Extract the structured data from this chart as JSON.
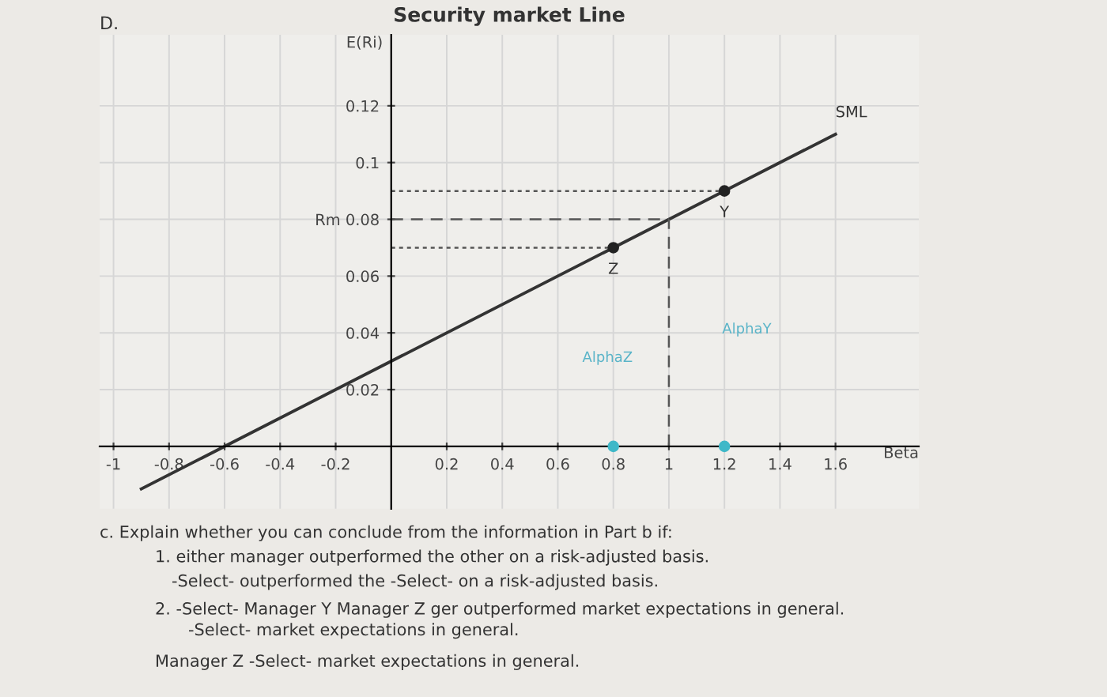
{
  "chart_data": {
    "type": "line",
    "title": "Security market Line",
    "xlabel": "Beta",
    "ylabel": "E(Ri)",
    "xlim": [
      -1.05,
      1.9
    ],
    "ylim": [
      -0.022,
      0.145
    ],
    "xticks": [
      -1,
      -0.8,
      -0.6,
      -0.4,
      -0.2,
      0.2,
      0.4,
      0.6,
      0.8,
      1,
      1.2,
      1.4,
      1.6
    ],
    "yticks": [
      0.02,
      0.04,
      0.06,
      {
        "value": 0.08,
        "label": "Rm 0.08"
      },
      0.1,
      0.12
    ],
    "grid": true,
    "legend": false,
    "series": [
      {
        "name": "SML",
        "color": "#333333",
        "x": [
          -0.9,
          1.6
        ],
        "values": [
          -0.015,
          0.11
        ]
      },
      {
        "type": "scatter",
        "color": "#222222",
        "marker": "circle",
        "x": [
          0.8,
          1.2
        ],
        "values": [
          0.07,
          0.09
        ]
      },
      {
        "type": "scatter",
        "color": "#3fb8c8",
        "marker": "circle",
        "x": [
          0.8,
          1.2
        ],
        "values": [
          0,
          0
        ]
      }
    ],
    "ref_lines": [
      {
        "axis": "y",
        "value": 0.08,
        "color": "#555555",
        "line_style": "dashed"
      },
      {
        "axis": "x",
        "value": 1,
        "color": "#555555",
        "line_style": "dashed"
      },
      {
        "axis": "y",
        "value": 0.09,
        "color": "#555555",
        "line_style": "dotted"
      },
      {
        "axis": "y",
        "value": 0.07,
        "color": "#555555",
        "line_style": "dotted"
      }
    ],
    "annotations": [
      {
        "text": "Z",
        "x": 0.8,
        "y": 0.07
      },
      {
        "text": "Y",
        "x": 1.2,
        "y": 0.09
      },
      "AlphaZ",
      "AlphaY",
      "D.",
      "c. Explain whether you can conclude from the information in Part b if:",
      "1. either manager outperformed the other on a risk-adjusted basis.",
      "-Select- outperformed the -Select- on a risk-adjusted basis.",
      "2. -Select- Manager Y Manager Z ger outperformed market expectations in general.",
      "-Select- market expectations in general.",
      "Manager Z -Select- market expectations in general."
    ]
  }
}
